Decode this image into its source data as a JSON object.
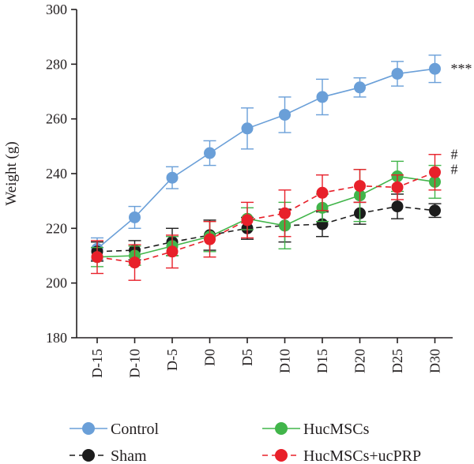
{
  "chart_data": {
    "type": "line",
    "title": "",
    "xlabel": "",
    "ylabel": "Weight (g)",
    "ylim": [
      180,
      300
    ],
    "yticks": [
      180,
      200,
      220,
      240,
      260,
      280,
      300
    ],
    "categories": [
      "D-15",
      "D-10",
      "D-5",
      "D0",
      "D5",
      "D10",
      "D15",
      "D20",
      "D25",
      "D30"
    ],
    "legend_position": "bottom",
    "series": [
      {
        "name": "Control",
        "color": "#6a9fd8",
        "dashed": false,
        "values": [
          212.5,
          224,
          238.5,
          247.5,
          256.5,
          261.5,
          268,
          271.5,
          276.5,
          278.3
        ],
        "errors": [
          4,
          4,
          4,
          4.5,
          7.5,
          6.5,
          6.5,
          3.5,
          4.5,
          5
        ]
      },
      {
        "name": "Sham",
        "color": "#1c1c1c",
        "dashed": true,
        "values": [
          211.5,
          212,
          215,
          217.5,
          220,
          221,
          221.5,
          225.5,
          228,
          226.5
        ],
        "errors": [
          3.5,
          3.5,
          5,
          5.5,
          4,
          6,
          4.5,
          4,
          4.5,
          2.5
        ]
      },
      {
        "name": "HucMSCs",
        "color": "#41b54a",
        "dashed": false,
        "values": [
          209.5,
          210,
          213.5,
          217,
          223.5,
          221,
          227.5,
          232,
          239,
          237
        ],
        "errors": [
          3.5,
          3.5,
          3.5,
          5.5,
          4,
          8.5,
          5,
          9.5,
          5.5,
          6
        ]
      },
      {
        "name": "HucMSCs+ucPRP",
        "color": "#e8202a",
        "dashed": true,
        "values": [
          209.5,
          207.5,
          211.5,
          216,
          223,
          225.5,
          233,
          235.5,
          235,
          240.5
        ],
        "errors": [
          6,
          6.5,
          6,
          6.5,
          6.5,
          8.5,
          6.5,
          6,
          4.5,
          6.5
        ]
      }
    ],
    "annotations": [
      {
        "text": "***",
        "series": "Control"
      },
      {
        "text": "#",
        "series": "HucMSCs+ucPRP"
      },
      {
        "text": "#",
        "series": "HucMSCs"
      }
    ]
  }
}
